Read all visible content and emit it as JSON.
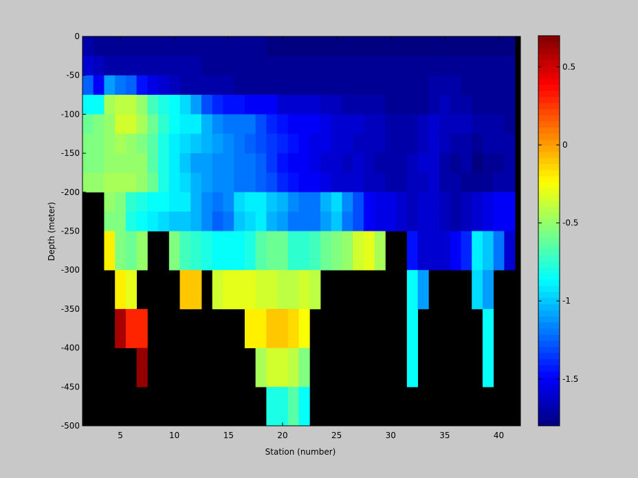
{
  "colors": {
    "figure_background": "#c8c8c8",
    "no_data": "#000000"
  },
  "chart_data": {
    "type": "heatmap",
    "title": "",
    "xlabel": "Station (number)",
    "ylabel": "Depth (meter)",
    "xlim": [
      1.5,
      42
    ],
    "ylim": [
      -500,
      0
    ],
    "colormap": "jet",
    "clim": [
      -1.8,
      0.7
    ],
    "colorbar_ticks": [
      0.5,
      0,
      -0.5,
      -1,
      -1.5
    ],
    "colorbar_tick_labels": [
      "0.5",
      "0",
      "-0.5",
      "-1",
      "-1.5"
    ],
    "x_ticks": [
      5,
      10,
      15,
      20,
      25,
      30,
      35,
      40
    ],
    "x_tick_labels": [
      "5",
      "10",
      "15",
      "20",
      "25",
      "30",
      "35",
      "40"
    ],
    "y_ticks": [
      0,
      -50,
      -100,
      -150,
      -200,
      -250,
      -300,
      -350,
      -400,
      -450,
      -500
    ],
    "y_tick_labels": [
      "0",
      "-50",
      "-100",
      "-150",
      "-200",
      "-250",
      "-300",
      "-350",
      "-400",
      "-450",
      "-500"
    ],
    "stations": [
      2,
      3,
      4,
      5,
      6,
      7,
      8,
      9,
      10,
      11,
      12,
      13,
      14,
      15,
      16,
      17,
      18,
      19,
      20,
      21,
      22,
      23,
      24,
      25,
      26,
      27,
      28,
      29,
      30,
      31,
      32,
      33,
      34,
      35,
      36,
      37,
      38,
      39,
      40,
      41
    ],
    "depth_bins_top": [
      0,
      -25,
      -50,
      -75,
      -100,
      -125,
      -150,
      -175,
      -200,
      -225,
      -250,
      -275,
      -300,
      -325,
      -350,
      -375,
      -400,
      -425,
      -450,
      -475
    ],
    "rows": [
      [
        -1.7,
        -1.75,
        -1.75,
        -1.75,
        -1.75,
        -1.75,
        -1.75,
        -1.75,
        -1.75,
        -1.75,
        -1.75,
        -1.75,
        -1.75,
        -1.75,
        -1.75,
        -1.75,
        -1.75,
        -1.8,
        -1.8,
        -1.8,
        -1.8,
        -1.8,
        -1.8,
        -1.8,
        -1.8,
        -1.8,
        -1.8,
        -1.8,
        -1.8,
        -1.8,
        -1.8,
        -1.8,
        -1.8,
        -1.8,
        -1.8,
        -1.8,
        -1.8,
        -1.8,
        -1.8,
        -1.8
      ],
      [
        -1.6,
        -1.65,
        -1.7,
        -1.7,
        -1.7,
        -1.7,
        -1.7,
        -1.7,
        -1.7,
        -1.7,
        -1.7,
        -1.75,
        -1.75,
        -1.75,
        -1.75,
        -1.75,
        -1.75,
        -1.75,
        -1.75,
        -1.75,
        -1.75,
        -1.75,
        -1.75,
        -1.75,
        -1.75,
        -1.75,
        -1.75,
        -1.75,
        -1.75,
        -1.75,
        -1.75,
        -1.75,
        -1.75,
        -1.75,
        -1.75,
        -1.75,
        -1.75,
        -1.75,
        -1.75,
        -1.75
      ],
      [
        -1.25,
        -1.5,
        -1.1,
        -1.2,
        -1.25,
        -1.45,
        -1.55,
        -1.6,
        -1.65,
        -1.7,
        -1.7,
        -1.7,
        -1.7,
        -1.7,
        -1.75,
        -1.75,
        -1.75,
        -1.75,
        -1.75,
        -1.75,
        -1.75,
        -1.75,
        -1.75,
        -1.75,
        -1.75,
        -1.75,
        -1.75,
        -1.75,
        -1.75,
        -1.75,
        -1.75,
        -1.75,
        -1.7,
        -1.7,
        -1.7,
        -1.75,
        -1.75,
        -1.75,
        -1.75,
        -1.75
      ],
      [
        -0.85,
        -0.85,
        -0.45,
        -0.4,
        -0.4,
        -0.5,
        -0.7,
        -0.8,
        -0.85,
        -0.95,
        -1.1,
        -1.3,
        -1.4,
        -1.45,
        -1.45,
        -1.5,
        -1.5,
        -1.5,
        -1.6,
        -1.6,
        -1.6,
        -1.6,
        -1.65,
        -1.65,
        -1.7,
        -1.7,
        -1.7,
        -1.7,
        -1.75,
        -1.75,
        -1.75,
        -1.75,
        -1.7,
        -1.65,
        -1.7,
        -1.7,
        -1.75,
        -1.75,
        -1.75,
        -1.75
      ],
      [
        -0.6,
        -0.55,
        -0.5,
        -0.35,
        -0.35,
        -0.45,
        -0.6,
        -0.75,
        -0.85,
        -0.9,
        -0.9,
        -1.05,
        -1.15,
        -1.2,
        -1.2,
        -1.2,
        -1.3,
        -1.4,
        -1.45,
        -1.5,
        -1.5,
        -1.5,
        -1.55,
        -1.6,
        -1.6,
        -1.6,
        -1.65,
        -1.65,
        -1.7,
        -1.7,
        -1.7,
        -1.65,
        -1.6,
        -1.65,
        -1.65,
        -1.65,
        -1.7,
        -1.7,
        -1.7,
        -1.75
      ],
      [
        -0.55,
        -0.55,
        -0.5,
        -0.45,
        -0.5,
        -0.55,
        -0.65,
        -0.8,
        -0.9,
        -0.95,
        -1.0,
        -1.05,
        -1.1,
        -1.15,
        -1.2,
        -1.25,
        -1.3,
        -1.35,
        -1.4,
        -1.45,
        -1.5,
        -1.55,
        -1.55,
        -1.6,
        -1.6,
        -1.65,
        -1.65,
        -1.65,
        -1.7,
        -1.7,
        -1.7,
        -1.65,
        -1.6,
        -1.65,
        -1.7,
        -1.7,
        -1.75,
        -1.7,
        -1.7,
        -1.7
      ],
      [
        -0.55,
        -0.55,
        -0.5,
        -0.5,
        -0.5,
        -0.5,
        -0.65,
        -0.8,
        -0.9,
        -1.0,
        -1.1,
        -1.1,
        -1.15,
        -1.15,
        -1.2,
        -1.2,
        -1.25,
        -1.35,
        -1.45,
        -1.5,
        -1.5,
        -1.55,
        -1.6,
        -1.6,
        -1.65,
        -1.6,
        -1.65,
        -1.7,
        -1.7,
        -1.7,
        -1.65,
        -1.6,
        -1.6,
        -1.7,
        -1.75,
        -1.7,
        -1.8,
        -1.75,
        -1.75,
        -1.7
      ],
      [
        -0.5,
        -0.5,
        -0.45,
        -0.45,
        -0.45,
        -0.5,
        -0.6,
        -0.8,
        -0.9,
        -0.95,
        -1.05,
        -1.1,
        -1.15,
        -1.15,
        -1.2,
        -1.2,
        -1.25,
        -1.3,
        -1.4,
        -1.45,
        -1.5,
        -1.5,
        -1.55,
        -1.6,
        -1.6,
        -1.6,
        -1.65,
        -1.65,
        -1.7,
        -1.7,
        -1.65,
        -1.65,
        -1.6,
        -1.7,
        -1.7,
        -1.75,
        -1.75,
        -1.75,
        -1.7,
        -1.7
      ],
      [
        null,
        null,
        -0.5,
        -0.55,
        -0.75,
        -0.8,
        -0.85,
        -0.85,
        -0.9,
        -0.9,
        -1.05,
        -1.15,
        -1.2,
        -1.15,
        -0.95,
        -0.9,
        -0.9,
        -1.0,
        -1.05,
        -1.15,
        -1.2,
        -1.2,
        -1.05,
        -0.95,
        -1.15,
        -1.3,
        -1.5,
        -1.55,
        -1.55,
        -1.6,
        -1.65,
        -1.6,
        -1.6,
        -1.65,
        -1.7,
        -1.65,
        -1.6,
        -1.55,
        -1.5,
        -1.5
      ],
      [
        null,
        null,
        -0.55,
        -0.55,
        -0.8,
        -0.85,
        -0.9,
        -0.95,
        -1.0,
        -1.0,
        -1.05,
        -1.15,
        -1.25,
        -1.2,
        -1.0,
        -0.95,
        -0.9,
        -1.05,
        -1.1,
        -1.2,
        -1.2,
        -1.2,
        -1.1,
        -1.0,
        -1.2,
        -1.3,
        -1.5,
        -1.55,
        -1.55,
        -1.6,
        -1.65,
        -1.6,
        -1.6,
        -1.65,
        -1.7,
        -1.65,
        -1.6,
        -1.55,
        -1.5,
        -1.5
      ],
      [
        null,
        null,
        -0.2,
        -0.55,
        -0.6,
        -0.5,
        null,
        null,
        -0.55,
        -0.7,
        -0.75,
        -0.8,
        -0.85,
        -0.85,
        -0.85,
        -0.8,
        -0.65,
        -0.6,
        -0.6,
        -0.75,
        -0.75,
        -0.7,
        -0.6,
        -0.55,
        -0.5,
        -0.35,
        -0.3,
        -0.45,
        null,
        null,
        -1.45,
        -1.6,
        -1.6,
        -1.6,
        -1.5,
        -1.4,
        -0.9,
        -1.0,
        -1.2,
        -1.6
      ],
      [
        null,
        null,
        -0.2,
        -0.55,
        -0.6,
        -0.5,
        null,
        null,
        -0.55,
        -0.7,
        -0.75,
        -0.8,
        -0.85,
        -0.85,
        -0.85,
        -0.8,
        -0.65,
        -0.6,
        -0.6,
        -0.75,
        -0.75,
        -0.7,
        -0.6,
        -0.55,
        -0.5,
        -0.35,
        -0.3,
        -0.45,
        null,
        null,
        -1.45,
        -1.6,
        -1.6,
        -1.6,
        -1.5,
        -1.4,
        -0.9,
        -1.0,
        -1.2,
        -1.6
      ],
      [
        null,
        null,
        null,
        -0.2,
        -0.3,
        null,
        null,
        null,
        null,
        -0.1,
        -0.1,
        null,
        -0.35,
        -0.3,
        -0.3,
        -0.3,
        -0.35,
        -0.35,
        -0.4,
        -0.4,
        -0.35,
        -0.4,
        null,
        null,
        null,
        null,
        null,
        null,
        null,
        null,
        -0.85,
        -1.1,
        null,
        null,
        null,
        null,
        -0.95,
        -1.1,
        null,
        null
      ],
      [
        null,
        null,
        null,
        -0.2,
        -0.3,
        null,
        null,
        null,
        null,
        -0.1,
        -0.1,
        null,
        -0.35,
        -0.3,
        -0.3,
        -0.3,
        -0.35,
        -0.35,
        -0.4,
        -0.4,
        -0.35,
        -0.4,
        null,
        null,
        null,
        null,
        null,
        null,
        null,
        null,
        -0.85,
        -1.1,
        null,
        null,
        null,
        null,
        -0.95,
        -1.1,
        null,
        null
      ],
      [
        null,
        null,
        null,
        0.6,
        0.3,
        0.3,
        null,
        null,
        null,
        null,
        null,
        null,
        null,
        null,
        null,
        -0.2,
        -0.2,
        -0.1,
        -0.1,
        -0.15,
        -0.25,
        null,
        null,
        null,
        null,
        null,
        null,
        null,
        null,
        null,
        -0.85,
        null,
        null,
        null,
        null,
        null,
        null,
        -0.85,
        null,
        null
      ],
      [
        null,
        null,
        null,
        0.6,
        0.3,
        0.3,
        null,
        null,
        null,
        null,
        null,
        null,
        null,
        null,
        null,
        -0.2,
        -0.2,
        -0.1,
        -0.1,
        -0.15,
        -0.25,
        null,
        null,
        null,
        null,
        null,
        null,
        null,
        null,
        null,
        -0.85,
        null,
        null,
        null,
        null,
        null,
        null,
        -0.85,
        null,
        null
      ],
      [
        null,
        null,
        null,
        null,
        null,
        0.65,
        null,
        null,
        null,
        null,
        null,
        null,
        null,
        null,
        null,
        null,
        -0.45,
        -0.35,
        -0.35,
        -0.4,
        -0.55,
        null,
        null,
        null,
        null,
        null,
        null,
        null,
        null,
        null,
        -0.85,
        null,
        null,
        null,
        null,
        null,
        null,
        -0.85,
        null,
        null
      ],
      [
        null,
        null,
        null,
        null,
        null,
        0.65,
        null,
        null,
        null,
        null,
        null,
        null,
        null,
        null,
        null,
        null,
        -0.45,
        -0.35,
        -0.35,
        -0.4,
        -0.55,
        null,
        null,
        null,
        null,
        null,
        null,
        null,
        null,
        null,
        -0.85,
        null,
        null,
        null,
        null,
        null,
        null,
        -0.85,
        null,
        null
      ],
      [
        null,
        null,
        null,
        null,
        null,
        null,
        null,
        null,
        null,
        null,
        null,
        null,
        null,
        null,
        null,
        null,
        null,
        -0.8,
        -0.8,
        -0.65,
        -0.85,
        null,
        null,
        null,
        null,
        null,
        null,
        null,
        null,
        null,
        null,
        null,
        null,
        null,
        null,
        null,
        null,
        null,
        null,
        null
      ],
      [
        null,
        null,
        null,
        null,
        null,
        null,
        null,
        null,
        null,
        null,
        null,
        null,
        null,
        null,
        null,
        null,
        null,
        -0.8,
        -0.8,
        -0.65,
        -0.85,
        null,
        null,
        null,
        null,
        null,
        null,
        null,
        null,
        null,
        null,
        null,
        null,
        null,
        null,
        null,
        null,
        null,
        null,
        null
      ]
    ]
  }
}
